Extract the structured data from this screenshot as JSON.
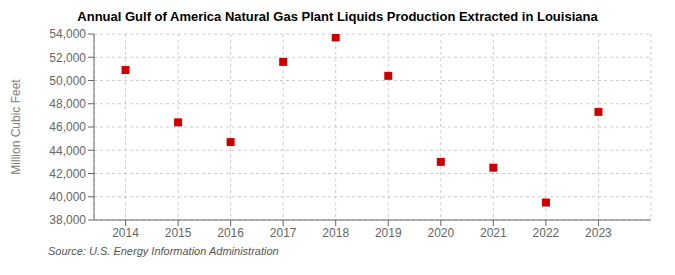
{
  "chart_data": {
    "type": "scatter",
    "title": "Annual Gulf of America Natural Gas Plant Liquids Production Extracted in Louisiana",
    "y_label": "Million Cubic Feet",
    "annotations": [
      "Source: U.S. Energy Information Administration"
    ],
    "x": [
      2014,
      2015,
      2016,
      2017,
      2018,
      2019,
      2020,
      2021,
      2022,
      2023
    ],
    "values": [
      50900,
      46400,
      44700,
      51600,
      53700,
      50400,
      43000,
      42500,
      39500,
      47300
    ],
    "xlim": [
      2013.4,
      2024.0
    ],
    "xticks": [
      2014,
      2015,
      2016,
      2017,
      2018,
      2019,
      2020,
      2021,
      2022,
      2023
    ],
    "ylim": [
      38000,
      54000
    ],
    "yticks": [
      {
        "value": 38000,
        "label": "38,000"
      },
      {
        "value": 40000,
        "label": "40,000"
      },
      {
        "value": 42000,
        "label": "42,000"
      },
      {
        "value": 44000,
        "label": "44,000"
      },
      {
        "value": 46000,
        "label": "46,000"
      },
      {
        "value": 48000,
        "label": "48,000"
      },
      {
        "value": 50000,
        "label": "50,000"
      },
      {
        "value": 52000,
        "label": "52,000"
      },
      {
        "value": 54000,
        "label": "54,000"
      }
    ],
    "color": "#cc0000",
    "marker": "square",
    "grid": true
  }
}
